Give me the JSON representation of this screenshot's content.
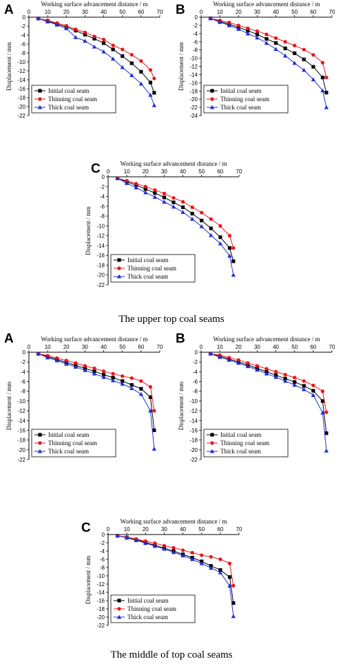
{
  "sections": [
    {
      "caption": "The upper top coal seams"
    },
    {
      "caption": "The middle of top coal seams"
    }
  ],
  "colors": {
    "initial": "#000000",
    "thinning": "#e8151b",
    "thick": "#1f2fd4"
  },
  "chart_data": [
    {
      "type": "line",
      "panel_label": "A",
      "group": "The upper top coal seams",
      "xlabel": "Working surface advancement distance / m",
      "ylabel": "Displacement / mm",
      "xlim": [
        0,
        70
      ],
      "ylim": [
        -22,
        0
      ],
      "x_ticks": [
        0,
        10,
        20,
        30,
        40,
        50,
        60,
        70
      ],
      "y_ticks": [
        0,
        -2,
        -4,
        -6,
        -8,
        -10,
        -12,
        -14,
        -16,
        -18,
        -20,
        -22
      ],
      "legend_position": "bottom-left",
      "x": [
        5,
        10,
        15,
        20,
        25,
        30,
        35,
        40,
        45,
        50,
        55,
        60,
        65,
        67
      ],
      "series": [
        {
          "name": "Initial coal seam",
          "marker": "square",
          "color": "#000000",
          "values": [
            -0.3,
            -0.8,
            -1.5,
            -2.2,
            -3.0,
            -3.9,
            -4.8,
            -5.8,
            -7.2,
            -8.7,
            -10.3,
            -12.2,
            -14.6,
            -16.9
          ]
        },
        {
          "name": "Thinning coal seam",
          "marker": "circle",
          "color": "#e8151b",
          "values": [
            -0.3,
            -0.7,
            -1.3,
            -1.9,
            -2.7,
            -3.4,
            -4.3,
            -5.0,
            -6.3,
            -7.2,
            -8.4,
            -9.8,
            -11.8,
            -13.7
          ]
        },
        {
          "name": "Thick coal seam",
          "marker": "triangle",
          "color": "#1f2fd4",
          "values": [
            -0.3,
            -1.0,
            -1.7,
            -2.5,
            -4.5,
            -5.3,
            -6.6,
            -7.7,
            -9.3,
            -11.2,
            -13.0,
            -14.9,
            -17.4,
            -19.7
          ]
        }
      ]
    },
    {
      "type": "line",
      "panel_label": "B",
      "group": "The upper top coal seams",
      "xlabel": "Working surface advancement distance / m",
      "ylabel": "Displacement / mm",
      "xlim": [
        0,
        70
      ],
      "ylim": [
        -24,
        0
      ],
      "x_ticks": [
        0,
        10,
        20,
        30,
        40,
        50,
        60,
        70
      ],
      "y_ticks": [
        0,
        -2,
        -4,
        -6,
        -8,
        -10,
        -12,
        -14,
        -16,
        -18,
        -20,
        -22,
        -24
      ],
      "legend_position": "bottom-left",
      "x": [
        5,
        10,
        15,
        20,
        25,
        30,
        35,
        40,
        45,
        50,
        55,
        60,
        65,
        67
      ],
      "series": [
        {
          "name": "Initial coal seam",
          "marker": "square",
          "color": "#000000",
          "values": [
            -0.3,
            -1.0,
            -1.7,
            -2.5,
            -3.3,
            -4.2,
            -5.3,
            -6.3,
            -7.6,
            -8.8,
            -10.3,
            -12.1,
            -14.7,
            -18.4
          ]
        },
        {
          "name": "Thinning coal seam",
          "marker": "circle",
          "color": "#e8151b",
          "values": [
            -0.3,
            -0.8,
            -1.3,
            -2.0,
            -2.7,
            -3.4,
            -4.2,
            -5.1,
            -6.0,
            -6.9,
            -7.9,
            -9.2,
            -11.1,
            -14.7
          ]
        },
        {
          "name": "Thick coal seam",
          "marker": "triangle",
          "color": "#1f2fd4",
          "values": [
            -0.3,
            -1.2,
            -2.0,
            -2.9,
            -4.0,
            -5.0,
            -6.3,
            -7.8,
            -9.4,
            -11.2,
            -12.9,
            -15.2,
            -17.9,
            -22.0
          ]
        }
      ]
    },
    {
      "type": "line",
      "panel_label": "C",
      "group": "The upper top coal seams",
      "xlabel": "Working surface advancement distance / m",
      "ylabel": "Displacement / mm",
      "xlim": [
        0,
        70
      ],
      "ylim": [
        -22,
        0
      ],
      "x_ticks": [
        0,
        10,
        20,
        30,
        40,
        50,
        60,
        70
      ],
      "y_ticks": [
        0,
        -2,
        -4,
        -6,
        -8,
        -10,
        -12,
        -14,
        -16,
        -18,
        -20,
        -22
      ],
      "legend_position": "bottom-left",
      "x": [
        5,
        10,
        15,
        20,
        25,
        30,
        35,
        40,
        45,
        50,
        55,
        60,
        65,
        67
      ],
      "series": [
        {
          "name": "Initial coal seam",
          "marker": "square",
          "color": "#000000",
          "values": [
            -0.3,
            -1.0,
            -1.7,
            -2.5,
            -3.3,
            -4.2,
            -5.2,
            -6.2,
            -7.5,
            -8.9,
            -10.5,
            -12.3,
            -14.5,
            -17.2
          ]
        },
        {
          "name": "Thinning coal seam",
          "marker": "circle",
          "color": "#e8151b",
          "values": [
            -0.3,
            -0.8,
            -1.4,
            -2.0,
            -2.7,
            -3.4,
            -4.3,
            -5.1,
            -6.2,
            -7.3,
            -8.6,
            -10.0,
            -12.0,
            -14.5
          ]
        },
        {
          "name": "Thick coal seam",
          "marker": "triangle",
          "color": "#1f2fd4",
          "values": [
            -0.3,
            -1.3,
            -2.2,
            -3.2,
            -4.1,
            -5.1,
            -6.1,
            -7.2,
            -8.6,
            -10.1,
            -11.9,
            -13.6,
            -16.1,
            -20.0
          ]
        }
      ]
    },
    {
      "type": "line",
      "panel_label": "A",
      "group": "The middle of top coal seams",
      "xlabel": "Working surface advancement distance / m",
      "ylabel": "Displacement / mm",
      "xlim": [
        0,
        70
      ],
      "ylim": [
        -22,
        0
      ],
      "x_ticks": [
        0,
        10,
        20,
        30,
        40,
        50,
        60,
        70
      ],
      "y_ticks": [
        0,
        -2,
        -4,
        -6,
        -8,
        -10,
        -12,
        -14,
        -16,
        -18,
        -20,
        -22
      ],
      "legend_position": "bottom-left",
      "x": [
        5,
        10,
        15,
        20,
        25,
        30,
        35,
        40,
        45,
        50,
        55,
        60,
        65,
        67
      ],
      "series": [
        {
          "name": "Initial coal seam",
          "marker": "square",
          "color": "#000000",
          "values": [
            -0.3,
            -0.9,
            -1.5,
            -2.1,
            -2.7,
            -3.3,
            -3.9,
            -4.6,
            -5.2,
            -5.9,
            -6.7,
            -7.5,
            -9.2,
            -16.0
          ]
        },
        {
          "name": "Thinning coal seam",
          "marker": "circle",
          "color": "#e8151b",
          "values": [
            -0.3,
            -0.7,
            -1.2,
            -1.7,
            -2.2,
            -2.8,
            -3.3,
            -3.9,
            -4.4,
            -4.9,
            -5.3,
            -5.9,
            -7.1,
            -12.0
          ]
        },
        {
          "name": "Thick coal seam",
          "marker": "triangle",
          "color": "#1f2fd4",
          "values": [
            -0.3,
            -1.1,
            -1.7,
            -2.4,
            -3.0,
            -3.7,
            -4.4,
            -5.1,
            -5.8,
            -6.5,
            -7.4,
            -8.6,
            -12.0,
            -19.8
          ]
        }
      ]
    },
    {
      "type": "line",
      "panel_label": "B",
      "group": "The middle of top coal seams",
      "xlabel": "Working surface advancement distance / m",
      "ylabel": "Displacement / mm",
      "xlim": [
        0,
        70
      ],
      "ylim": [
        -22,
        0
      ],
      "x_ticks": [
        0,
        10,
        20,
        30,
        40,
        50,
        60,
        70
      ],
      "y_ticks": [
        0,
        -2,
        -4,
        -6,
        -8,
        -10,
        -12,
        -14,
        -16,
        -18,
        -20,
        -22
      ],
      "legend_position": "bottom-left",
      "x": [
        5,
        10,
        15,
        20,
        25,
        30,
        35,
        40,
        45,
        50,
        55,
        60,
        65,
        67
      ],
      "series": [
        {
          "name": "Initial coal seam",
          "marker": "square",
          "color": "#000000",
          "values": [
            -0.3,
            -0.8,
            -1.4,
            -2.0,
            -2.6,
            -3.3,
            -4.0,
            -4.7,
            -5.4,
            -6.1,
            -6.9,
            -7.9,
            -10.0,
            -16.6
          ]
        },
        {
          "name": "Thinning coal seam",
          "marker": "circle",
          "color": "#e8151b",
          "values": [
            -0.3,
            -0.6,
            -1.1,
            -1.6,
            -2.2,
            -2.8,
            -3.4,
            -4.0,
            -4.6,
            -5.2,
            -5.9,
            -6.8,
            -8.0,
            -12.3
          ]
        },
        {
          "name": "Thick coal seam",
          "marker": "triangle",
          "color": "#1f2fd4",
          "values": [
            -0.3,
            -1.0,
            -1.6,
            -2.2,
            -2.9,
            -3.6,
            -4.4,
            -5.1,
            -5.9,
            -6.7,
            -7.6,
            -8.8,
            -12.4,
            -20.2
          ]
        }
      ]
    },
    {
      "type": "line",
      "panel_label": "C",
      "group": "The middle of top coal seams",
      "xlabel": "Working surface advancement distance / m",
      "ylabel": "Displacement / mm",
      "xlim": [
        0,
        70
      ],
      "ylim": [
        -22,
        0
      ],
      "x_ticks": [
        0,
        10,
        20,
        30,
        40,
        50,
        60,
        70
      ],
      "y_ticks": [
        0,
        -2,
        -4,
        -6,
        -8,
        -10,
        -12,
        -14,
        -16,
        -18,
        -20,
        -22
      ],
      "legend_position": "bottom-left",
      "x": [
        5,
        10,
        15,
        20,
        25,
        30,
        35,
        40,
        45,
        50,
        55,
        60,
        65,
        67
      ],
      "series": [
        {
          "name": "Initial coal seam",
          "marker": "square",
          "color": "#000000",
          "values": [
            -0.3,
            -0.7,
            -1.2,
            -1.9,
            -2.6,
            -3.3,
            -4.0,
            -4.8,
            -5.6,
            -6.5,
            -7.6,
            -8.6,
            -10.3,
            -16.6
          ]
        },
        {
          "name": "Thinning coal seam",
          "marker": "circle",
          "color": "#e8151b",
          "values": [
            -0.3,
            -0.6,
            -1.1,
            -1.6,
            -2.1,
            -2.7,
            -3.2,
            -3.8,
            -4.4,
            -5.0,
            -5.4,
            -6.0,
            -7.0,
            -12.4
          ]
        },
        {
          "name": "Thick coal seam",
          "marker": "triangle",
          "color": "#1f2fd4",
          "values": [
            -0.3,
            -0.8,
            -1.4,
            -2.1,
            -2.8,
            -3.5,
            -4.3,
            -5.1,
            -6.0,
            -7.0,
            -8.1,
            -9.2,
            -12.4,
            -19.8
          ]
        }
      ]
    }
  ]
}
